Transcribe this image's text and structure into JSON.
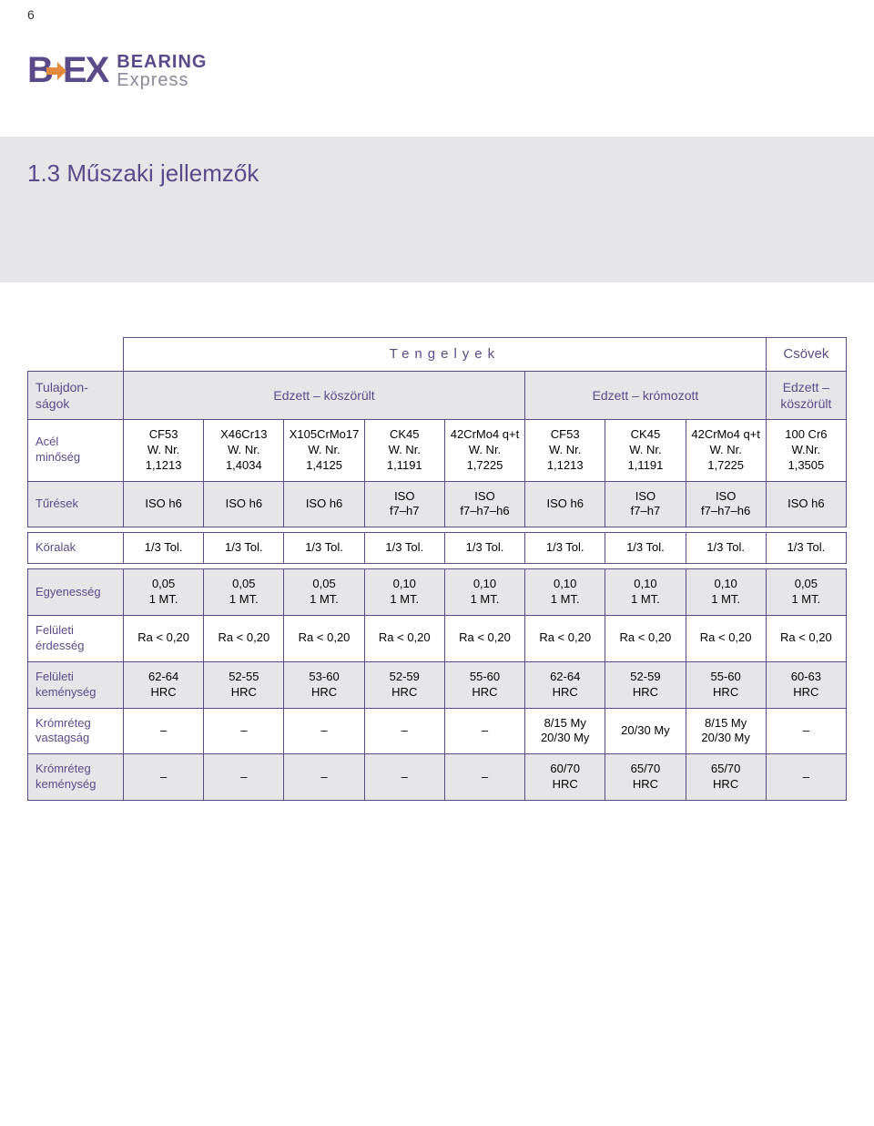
{
  "page_number": "6",
  "logo": {
    "bearing": "BEARING",
    "express": "Express"
  },
  "headline": "1.3 Műszaki jellemzők",
  "colors": {
    "purple": "#5a4a8a",
    "grey_band": "#e6e6e8",
    "grey_text": "#8a8a9a",
    "orange": "#e38a3e",
    "border": "#5a4a8a"
  },
  "table": {
    "top_groups": {
      "tengelyek": "Tengelyek",
      "csovek": "Csövek"
    },
    "sub_groups": {
      "tulajdonsagok": "Tulajdon-\nságok",
      "edzett_koszorult": "Edzett – köszörült",
      "edzett_kromozott": "Edzett – krómozott",
      "edzett_koszorult2": "Edzett –\nköszörült"
    },
    "row_labels": {
      "acel": "Acél\nminőség",
      "turesek": "Tűrések",
      "koralak": "Köralak",
      "egyenesseg": "Egyenesség",
      "feluleti_erdesseg": "Felületi\nérdesség",
      "feluleti_kemenyseg": "Felületi\nkeménység",
      "kromreteg_vastagsag": "Krómréteg\nvastagság",
      "kromreteg_kemenyseg": "Krómréteg\nkeménység"
    },
    "steel": [
      "CF53\nW. Nr.\n1,1213",
      "X46Cr13\nW. Nr.\n1,4034",
      "X105CrMo17\nW. Nr.\n1,4125",
      "CK45\nW. Nr.\n1,1191",
      "42CrMo4 q+t\nW. Nr.\n1,7225",
      "CF53\nW. Nr.\n1,1213",
      "CK45\nW. Nr.\n1,1191",
      "42CrMo4 q+t\nW. Nr.\n1,7225",
      "100 Cr6\nW.Nr.\n1,3505"
    ],
    "tolerances": [
      "ISO h6",
      "ISO h6",
      "ISO h6",
      "ISO\nf7–h7",
      "ISO\nf7–h7–h6",
      "ISO h6",
      "ISO\nf7–h7",
      "ISO\nf7–h7–h6",
      "ISO h6"
    ],
    "roundness": [
      "1/3 Tol.",
      "1/3 Tol.",
      "1/3 Tol.",
      "1/3 Tol.",
      "1/3 Tol.",
      "1/3 Tol.",
      "1/3 Tol.",
      "1/3 Tol.",
      "1/3 Tol."
    ],
    "straightness": [
      "0,05\n1 MT.",
      "0,05\n1 MT.",
      "0,05\n1 MT.",
      "0,10\n1 MT.",
      "0,10\n1 MT.",
      "0,10\n1 MT.",
      "0,10\n1 MT.",
      "0,10\n1 MT.",
      "0,05\n1 MT."
    ],
    "roughness": [
      "Ra < 0,20",
      "Ra < 0,20",
      "Ra < 0,20",
      "Ra < 0,20",
      "Ra < 0,20",
      "Ra < 0,20",
      "Ra < 0,20",
      "Ra < 0,20",
      "Ra < 0,20"
    ],
    "hardness": [
      "62-64\nHRC",
      "52-55\nHRC",
      "53-60\nHRC",
      "52-59\nHRC",
      "55-60\nHRC",
      "62-64\nHRC",
      "52-59\nHRC",
      "55-60\nHRC",
      "60-63\nHRC"
    ],
    "chrome_thickness": [
      "–",
      "–",
      "–",
      "–",
      "–",
      "8/15 My\n20/30 My",
      "20/30 My",
      "8/15 My\n20/30 My",
      "–"
    ],
    "chrome_hardness": [
      "–",
      "–",
      "–",
      "–",
      "–",
      "60/70\nHRC",
      "65/70\nHRC",
      "65/70\nHRC",
      "–"
    ]
  }
}
